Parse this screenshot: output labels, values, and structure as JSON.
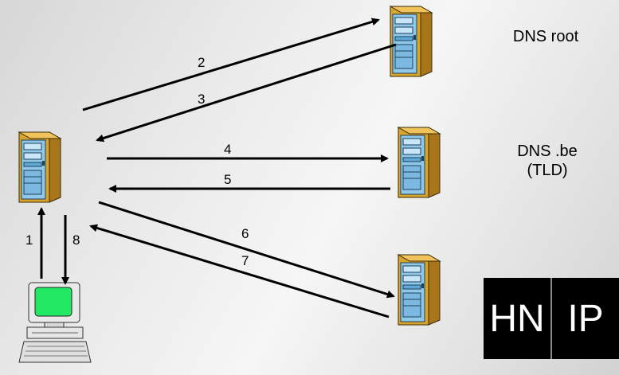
{
  "servers": {
    "root": {
      "label": "DNS root"
    },
    "tld": {
      "label_line1": "DNS .be",
      "label_line2": "(TLD)"
    }
  },
  "steps": [
    "1",
    "2",
    "3",
    "4",
    "5",
    "6",
    "7",
    "8"
  ],
  "table": {
    "col1": "HN",
    "col2": "IP"
  },
  "colors": {
    "tower_body": "#d9a42a",
    "tower_side": "#a8751a",
    "tower_front": "#8fc8ea",
    "monitor_screen": "#22e864",
    "arrow": "#000000",
    "table_bg": "#000000"
  }
}
